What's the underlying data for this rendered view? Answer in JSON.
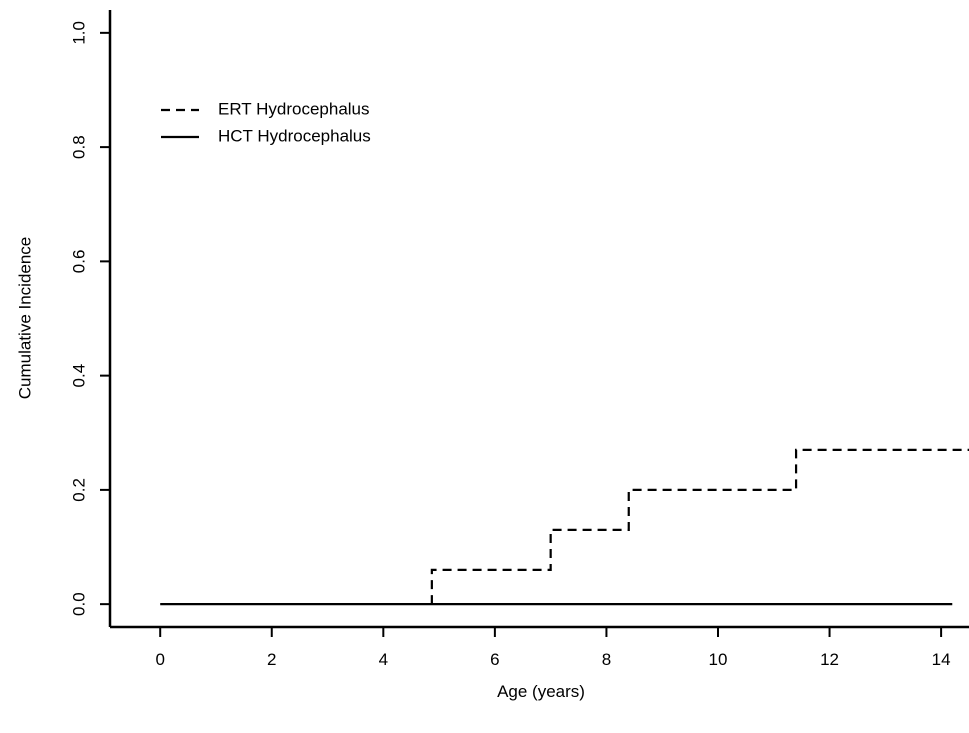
{
  "chart_data": {
    "type": "line",
    "step": true,
    "title": "",
    "xlabel": "Age (years)",
    "ylabel": "Cumulative Incidence",
    "xlim": [
      -0.9,
      14.5
    ],
    "ylim": [
      -0.04,
      1.04
    ],
    "x_ticks": [
      0,
      2,
      4,
      6,
      8,
      10,
      12,
      14
    ],
    "x_tick_labels": [
      "0",
      "2",
      "4",
      "6",
      "8",
      "10",
      "12",
      "14"
    ],
    "y_ticks": [
      0.0,
      0.2,
      0.4,
      0.6,
      0.8,
      1.0
    ],
    "y_tick_labels": [
      "0.0",
      "0.2",
      "0.4",
      "0.6",
      "0.8",
      "1.0"
    ],
    "grid": false,
    "legend_position": "top-left",
    "series": [
      {
        "name": "ERT Hydrocephalus",
        "line_style": "dashed",
        "color": "#000000",
        "x": [
          4.87,
          4.87,
          7.0,
          7.0,
          8.4,
          8.4,
          11.4,
          11.4,
          14.5
        ],
        "y": [
          0.0,
          0.06,
          0.06,
          0.13,
          0.13,
          0.2,
          0.2,
          0.27,
          0.27
        ]
      },
      {
        "name": "HCT Hydrocephalus",
        "line_style": "solid",
        "color": "#000000",
        "x": [
          0,
          14.2
        ],
        "y": [
          0.0,
          0.0
        ]
      }
    ]
  }
}
